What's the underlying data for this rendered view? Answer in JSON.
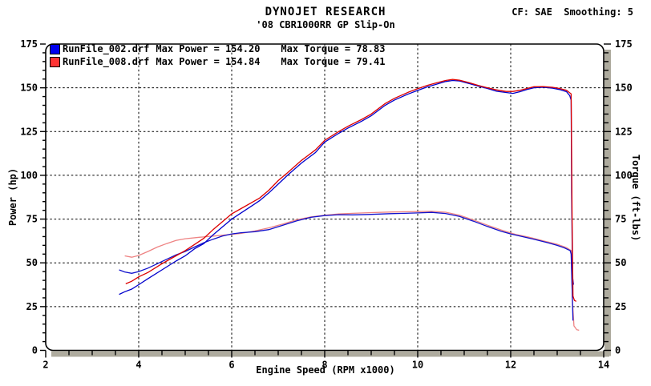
{
  "header": {
    "title": "DYNOJET RESEARCH",
    "subtitle": "'08 CBR1000RR GP Slip-On",
    "correction_info": "CF: SAE  Smoothing: 5"
  },
  "legend": {
    "rows": [
      {
        "file": "RunFile_002.drf",
        "max_power": "Max Power = 154.20",
        "max_torque": "Max Torque = 78.83",
        "swatch_color": "#0000ee"
      },
      {
        "file": "RunFile_008.drf",
        "max_power": "Max Power = 154.84",
        "max_torque": "Max Torque = 79.41",
        "swatch_color": "#ff3333"
      }
    ]
  },
  "colors": {
    "blue_power": "#0000cc",
    "blue_torque": "#1111cc",
    "red_power": "#dd0000",
    "red_torque": "#ee8383",
    "frame": "#000000",
    "shadow": "#aeab9e",
    "grid": "#000000",
    "background": "#ffffff"
  },
  "chart_data": {
    "type": "line",
    "title": "DYNOJET RESEARCH",
    "subtitle": "'08 CBR1000RR GP Slip-On",
    "xlabel": "Engine Speed (RPM x1000)",
    "ylabel_left": "Power (hp)",
    "ylabel_right": "Torque (ft-lbs)",
    "xlim": [
      2,
      14
    ],
    "ylim": [
      0,
      175
    ],
    "x_major_ticks": [
      2,
      4,
      6,
      8,
      10,
      12,
      14
    ],
    "x_minor_step": 0.5,
    "y_major_ticks": [
      0,
      25,
      50,
      75,
      100,
      125,
      150,
      175
    ],
    "y_minor_step": 5,
    "grid": "dashed black at x majors 4-12 and y majors 25-150",
    "legend_position": "top-left inside plot",
    "series": [
      {
        "name": "RunFile_008.drf Torque (ft-lbs)",
        "color": "#ee8383",
        "points": [
          [
            3.7,
            54
          ],
          [
            3.85,
            53.2
          ],
          [
            4.0,
            54.2
          ],
          [
            4.2,
            56.5
          ],
          [
            4.4,
            59
          ],
          [
            4.6,
            61
          ],
          [
            4.8,
            62.8
          ],
          [
            5.0,
            63.8
          ],
          [
            5.3,
            64.6
          ],
          [
            5.6,
            65.3
          ],
          [
            5.9,
            66
          ],
          [
            6.2,
            66.8
          ],
          [
            6.5,
            68.2
          ],
          [
            6.8,
            70
          ],
          [
            7.1,
            72.2
          ],
          [
            7.4,
            74.6
          ],
          [
            7.7,
            76.2
          ],
          [
            8.0,
            77.2
          ],
          [
            8.3,
            77.9
          ],
          [
            8.6,
            78.3
          ],
          [
            9.0,
            78.7
          ],
          [
            9.4,
            79
          ],
          [
            9.7,
            79.2
          ],
          [
            10.0,
            79.3
          ],
          [
            10.3,
            79.41
          ],
          [
            10.6,
            78.9
          ],
          [
            10.9,
            77.2
          ],
          [
            11.2,
            74.5
          ],
          [
            11.5,
            71.5
          ],
          [
            11.8,
            68.7
          ],
          [
            12.1,
            66.3
          ],
          [
            12.4,
            64.6
          ],
          [
            12.7,
            62.6
          ],
          [
            13.0,
            60.6
          ],
          [
            13.2,
            58.7
          ],
          [
            13.3,
            57
          ],
          [
            13.33,
            28
          ],
          [
            13.36,
            14
          ],
          [
            13.42,
            11.8
          ],
          [
            13.47,
            11.5
          ]
        ]
      },
      {
        "name": "RunFile_002.drf Torque (ft-lbs)",
        "color": "#1111cc",
        "points": [
          [
            3.58,
            46
          ],
          [
            3.7,
            44.8
          ],
          [
            3.85,
            44
          ],
          [
            4.0,
            45
          ],
          [
            4.2,
            47
          ],
          [
            4.4,
            49.5
          ],
          [
            4.6,
            52
          ],
          [
            4.8,
            54.5
          ],
          [
            5.0,
            56.5
          ],
          [
            5.2,
            59
          ],
          [
            5.4,
            61.5
          ],
          [
            5.6,
            63.5
          ],
          [
            5.8,
            65.3
          ],
          [
            6.0,
            66.5
          ],
          [
            6.2,
            67.2
          ],
          [
            6.5,
            67.8
          ],
          [
            6.8,
            69
          ],
          [
            7.1,
            71.5
          ],
          [
            7.4,
            74
          ],
          [
            7.7,
            76
          ],
          [
            8.0,
            77
          ],
          [
            8.3,
            77.5
          ],
          [
            8.6,
            77.4
          ],
          [
            9.0,
            77.7
          ],
          [
            9.4,
            78.1
          ],
          [
            9.7,
            78.3
          ],
          [
            10.0,
            78.5
          ],
          [
            10.3,
            78.83
          ],
          [
            10.6,
            78.2
          ],
          [
            10.9,
            76.5
          ],
          [
            11.2,
            73.8
          ],
          [
            11.5,
            70.8
          ],
          [
            11.8,
            68
          ],
          [
            12.0,
            66.5
          ],
          [
            12.2,
            65.3
          ],
          [
            12.5,
            63.5
          ],
          [
            12.8,
            61.5
          ],
          [
            13.0,
            60
          ],
          [
            13.15,
            58.6
          ],
          [
            13.28,
            57
          ],
          [
            13.3,
            55
          ],
          [
            13.32,
            35
          ],
          [
            13.34,
            17
          ]
        ]
      },
      {
        "name": "RunFile_002.drf Power (hp)",
        "color": "#0000cc",
        "points": [
          [
            3.58,
            32
          ],
          [
            3.7,
            33.5
          ],
          [
            3.85,
            35
          ],
          [
            4.0,
            37.5
          ],
          [
            4.2,
            41
          ],
          [
            4.5,
            46
          ],
          [
            4.8,
            51
          ],
          [
            5.0,
            54
          ],
          [
            5.2,
            58
          ],
          [
            5.4,
            61
          ],
          [
            5.6,
            66
          ],
          [
            5.8,
            70.5
          ],
          [
            6.0,
            75
          ],
          [
            6.2,
            78.5
          ],
          [
            6.4,
            82
          ],
          [
            6.6,
            85.5
          ],
          [
            6.8,
            90
          ],
          [
            7.0,
            95
          ],
          [
            7.2,
            100
          ],
          [
            7.5,
            107
          ],
          [
            7.8,
            113
          ],
          [
            8.0,
            119
          ],
          [
            8.3,
            124
          ],
          [
            8.5,
            127
          ],
          [
            8.8,
            131
          ],
          [
            9.0,
            134
          ],
          [
            9.3,
            140
          ],
          [
            9.5,
            143
          ],
          [
            9.8,
            146.5
          ],
          [
            10.0,
            148.5
          ],
          [
            10.2,
            150.5
          ],
          [
            10.4,
            152
          ],
          [
            10.6,
            153.6
          ],
          [
            10.75,
            154.2
          ],
          [
            10.9,
            153.9
          ],
          [
            11.1,
            152.5
          ],
          [
            11.3,
            151
          ],
          [
            11.5,
            149.6
          ],
          [
            11.7,
            148
          ],
          [
            11.9,
            147.3
          ],
          [
            12.05,
            146.8
          ],
          [
            12.2,
            147.8
          ],
          [
            12.35,
            149
          ],
          [
            12.5,
            150
          ],
          [
            12.7,
            150.3
          ],
          [
            12.9,
            149.8
          ],
          [
            13.05,
            149
          ],
          [
            13.2,
            147.8
          ],
          [
            13.27,
            145.5
          ],
          [
            13.3,
            143
          ],
          [
            13.31,
            90
          ],
          [
            13.33,
            42
          ],
          [
            13.35,
            37.5
          ]
        ]
      },
      {
        "name": "RunFile_008.drf Power (hp)",
        "color": "#dd0000",
        "points": [
          [
            3.72,
            38
          ],
          [
            3.85,
            39.5
          ],
          [
            4.0,
            42
          ],
          [
            4.2,
            44.5
          ],
          [
            4.5,
            49.5
          ],
          [
            4.8,
            54
          ],
          [
            5.0,
            57
          ],
          [
            5.2,
            60.5
          ],
          [
            5.4,
            64
          ],
          [
            5.6,
            69
          ],
          [
            5.8,
            73.5
          ],
          [
            6.0,
            78
          ],
          [
            6.2,
            81
          ],
          [
            6.4,
            84
          ],
          [
            6.6,
            87
          ],
          [
            6.8,
            91.5
          ],
          [
            7.0,
            97
          ],
          [
            7.2,
            101.5
          ],
          [
            7.5,
            108.5
          ],
          [
            7.8,
            114.5
          ],
          [
            8.0,
            120
          ],
          [
            8.3,
            125
          ],
          [
            8.5,
            128
          ],
          [
            8.8,
            132
          ],
          [
            9.0,
            135
          ],
          [
            9.3,
            141
          ],
          [
            9.5,
            144
          ],
          [
            9.8,
            147.5
          ],
          [
            10.0,
            149.5
          ],
          [
            10.2,
            151.3
          ],
          [
            10.4,
            152.8
          ],
          [
            10.6,
            154.2
          ],
          [
            10.75,
            154.84
          ],
          [
            10.9,
            154.3
          ],
          [
            11.1,
            153
          ],
          [
            11.3,
            151.4
          ],
          [
            11.5,
            150
          ],
          [
            11.7,
            148.8
          ],
          [
            11.9,
            147.9
          ],
          [
            12.05,
            147.9
          ],
          [
            12.2,
            148.6
          ],
          [
            12.35,
            149.6
          ],
          [
            12.5,
            150.6
          ],
          [
            12.7,
            150.7
          ],
          [
            12.9,
            150.3
          ],
          [
            13.05,
            149.6
          ],
          [
            13.2,
            148.6
          ],
          [
            13.3,
            146.5
          ],
          [
            13.32,
            75
          ],
          [
            13.34,
            31
          ],
          [
            13.37,
            28.5
          ],
          [
            13.41,
            28
          ]
        ]
      }
    ]
  }
}
